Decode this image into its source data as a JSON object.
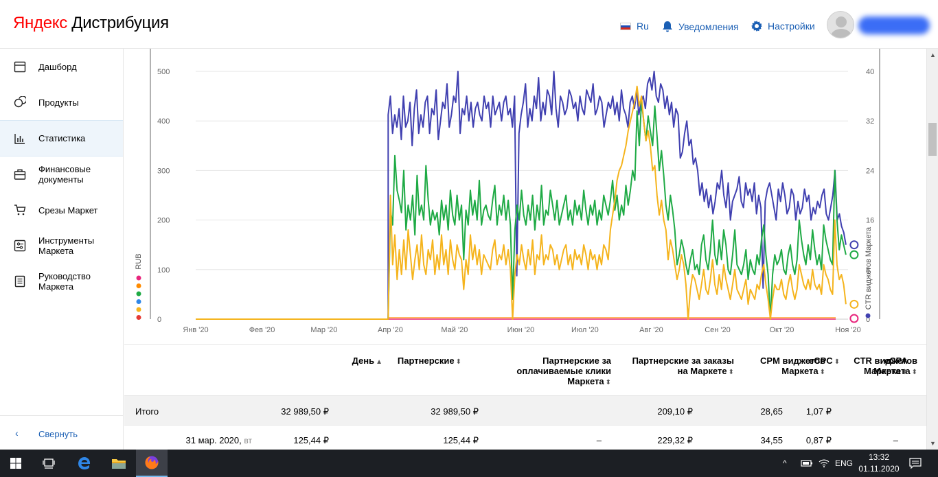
{
  "header": {
    "logo_brand": "Яндекс",
    "logo_product": "Дистрибуция",
    "lang_label": "Ru",
    "notifications_label": "Уведомления",
    "settings_label": "Настройки"
  },
  "sidebar": {
    "items": [
      {
        "label": "Дашборд",
        "icon": "calendar-icon"
      },
      {
        "label": "Продукты",
        "icon": "products-icon"
      },
      {
        "label": "Статистика",
        "icon": "bar-chart-icon",
        "active": true
      },
      {
        "label": "Финансовые\nдокументы",
        "icon": "briefcase-icon"
      },
      {
        "label": "Срезы Маркет",
        "icon": "cart-icon"
      },
      {
        "label": "Инструменты\nМаркета",
        "icon": "tools-icon"
      },
      {
        "label": "Руководство\nМаркета",
        "icon": "book-icon"
      }
    ],
    "collapse_label": "Свернуть"
  },
  "chart_data": {
    "type": "line",
    "x_ticks": [
      "Янв '20",
      "Фев '20",
      "Мар '20",
      "Апр '20",
      "Май '20",
      "Июн '20",
      "Июл '20",
      "Авг '20",
      "Сен '20",
      "Окт '20",
      "Ноя '20"
    ],
    "y_left_label": "RUB",
    "y_left_ticks": [
      0,
      100,
      200,
      300,
      400,
      500
    ],
    "y_right_label": "CTR виджетов Маркета",
    "y_right_ticks": [
      0,
      8,
      16,
      24,
      32,
      40
    ],
    "colors": {
      "blue": "#4040b0",
      "green": "#1faa45",
      "yellow": "#f5b41d",
      "pink": "#e8267d",
      "orange": "#ff8a00",
      "red": "#e53935",
      "sky": "#2f87e8"
    },
    "series": [
      {
        "color": "blue",
        "axis": "right",
        "start": "2020-03-31",
        "end": "2020-10-31",
        "values": [
          33,
          36,
          30,
          33,
          31,
          34,
          29,
          36,
          31,
          32,
          35,
          28,
          34,
          37,
          30,
          33,
          31,
          35,
          36,
          30,
          34,
          33,
          37,
          29,
          32,
          35,
          34,
          38,
          31,
          33,
          36,
          35,
          40,
          30,
          34,
          33,
          36,
          32,
          35,
          31,
          34,
          35,
          33,
          32,
          36,
          34,
          35,
          31,
          36,
          33,
          34,
          35,
          32,
          35,
          36,
          33,
          34,
          31,
          36,
          7,
          30,
          33,
          35,
          38,
          31,
          34,
          32,
          36,
          34,
          39,
          32,
          35,
          33,
          37,
          36,
          33,
          40,
          34,
          31,
          36,
          35,
          33,
          34,
          37,
          36,
          34,
          35,
          32,
          36,
          34,
          33,
          37,
          36,
          35,
          38,
          33,
          34,
          36,
          35,
          31,
          33,
          35,
          34,
          36,
          33,
          35,
          32,
          37,
          34,
          33,
          31,
          35,
          36,
          34,
          37,
          33,
          35,
          36,
          34,
          38,
          39,
          37,
          40,
          36,
          35,
          38,
          37,
          34,
          36,
          33,
          35,
          31,
          34,
          33,
          26,
          27,
          30,
          32,
          28,
          29,
          25,
          26,
          24,
          20,
          22,
          19,
          21,
          18,
          20,
          17,
          19,
          22,
          21,
          24,
          20,
          18,
          22,
          16,
          19,
          20,
          21,
          23,
          19,
          18,
          22,
          20,
          21,
          19,
          22,
          17,
          20,
          18,
          5,
          19,
          21,
          22,
          20,
          18,
          16,
          21,
          19,
          22,
          20,
          17,
          18,
          21,
          20,
          16,
          19,
          17,
          18,
          21,
          19,
          20,
          16,
          18,
          17,
          19,
          18,
          20,
          21,
          17,
          16,
          18,
          20,
          24,
          16,
          17,
          15,
          14,
          12
        ]
      },
      {
        "color": "green",
        "axis": "left",
        "start": "2020-03-31",
        "end": "2020-10-31",
        "values": [
          0,
          220,
          190,
          330,
          260,
          240,
          215,
          300,
          180,
          230,
          200,
          250,
          170,
          290,
          210,
          230,
          200,
          310,
          240,
          190,
          220,
          200,
          215,
          170,
          240,
          200,
          230,
          180,
          260,
          210,
          190,
          250,
          200,
          230,
          120,
          220,
          190,
          260,
          210,
          240,
          200,
          280,
          190,
          220,
          230,
          210,
          200,
          240,
          270,
          190,
          230,
          210,
          250,
          200,
          240,
          190,
          40,
          180,
          230,
          200,
          260,
          210,
          190,
          230,
          200,
          250,
          180,
          230,
          200,
          270,
          190,
          220,
          210,
          260,
          230,
          200,
          240,
          190,
          210,
          230,
          250,
          200,
          220,
          190,
          240,
          210,
          230,
          200,
          260,
          220,
          190,
          230,
          210,
          240,
          190,
          220,
          200,
          250,
          230,
          210,
          240,
          280,
          220,
          250,
          200,
          230,
          210,
          270,
          230,
          260,
          300,
          280,
          420,
          350,
          440,
          400,
          360,
          410,
          380,
          350,
          430,
          370,
          300,
          340,
          290,
          230,
          200,
          250,
          220,
          180,
          110,
          130,
          160,
          140,
          110,
          90,
          120,
          140,
          100,
          110,
          90,
          150,
          170,
          120,
          100,
          140,
          200,
          130,
          110,
          160,
          120,
          180,
          150,
          100,
          90,
          130,
          180,
          110,
          100,
          90,
          110,
          140,
          80,
          120,
          100,
          90,
          130,
          110,
          160,
          190,
          130,
          90,
          0,
          90,
          130,
          110,
          120,
          140,
          100,
          90,
          130,
          150,
          110,
          90,
          120,
          200,
          160,
          130,
          110,
          150,
          120,
          180,
          140,
          110,
          130,
          100,
          190,
          160,
          140,
          120,
          110,
          300,
          200,
          140,
          170,
          150,
          130
        ]
      },
      {
        "color": "yellow",
        "axis": "left",
        "start": "2020-03-31",
        "end": "2020-10-31",
        "values": [
          0,
          250,
          110,
          170,
          80,
          140,
          90,
          160,
          100,
          180,
          130,
          80,
          120,
          150,
          100,
          170,
          110,
          90,
          140,
          120,
          160,
          90,
          130,
          100,
          170,
          110,
          140,
          90,
          160,
          120,
          100,
          150,
          130,
          120,
          60,
          120,
          90,
          170,
          120,
          150,
          110,
          140,
          90,
          130,
          120,
          110,
          100,
          140,
          160,
          110,
          130,
          120,
          150,
          110,
          140,
          100,
          0,
          90,
          130,
          110,
          150,
          120,
          100,
          140,
          110,
          160,
          90,
          130,
          120,
          170,
          110,
          130,
          120,
          150,
          140,
          110,
          130,
          100,
          120,
          140,
          150,
          110,
          130,
          100,
          140,
          120,
          130,
          110,
          150,
          130,
          100,
          140,
          120,
          130,
          100,
          130,
          110,
          150,
          140,
          120,
          180,
          210,
          240,
          280,
          300,
          310,
          330,
          350,
          380,
          400,
          420,
          440,
          470,
          430,
          450,
          400,
          360,
          380,
          350,
          300,
          310,
          250,
          210,
          240,
          200,
          180,
          120,
          160,
          140,
          110,
          80,
          100,
          130,
          110,
          70,
          0,
          60,
          90,
          80,
          60,
          40,
          70,
          100,
          60,
          50,
          80,
          120,
          70,
          50,
          90,
          60,
          110,
          80,
          60,
          40,
          70,
          100,
          60,
          50,
          40,
          60,
          80,
          30,
          60,
          50,
          40,
          70,
          60,
          90,
          110,
          70,
          40,
          0,
          40,
          70,
          60,
          60,
          80,
          50,
          40,
          70,
          90,
          60,
          40,
          60,
          110,
          90,
          70,
          60,
          80,
          60,
          100,
          70,
          60,
          70,
          50,
          110,
          90,
          80,
          60,
          50,
          200,
          110,
          80,
          90,
          70,
          30
        ]
      }
    ]
  },
  "table": {
    "headers": {
      "day": "День",
      "partner": "Партнерские",
      "partner_clicks": "Партнерские за\nоплачиваемые клики\nМаркета",
      "partner_orders": "Партнерские за заказы\nна Маркете",
      "cpm": "CPM виджетов\nМаркета",
      "ctr": "CTR виджетов\nМаркета",
      "ecpc": "eCPC",
      "ecpa": "eCPA\nМаркета"
    },
    "total": {
      "label": "Итого",
      "partner": "32 989,50 ₽",
      "partner_clicks": "32 989,50 ₽",
      "cpm": "209,10 ₽",
      "ctr": "28,65",
      "ecpc": "1,07 ₽"
    },
    "row1": {
      "day": "31 мар. 2020,",
      "weekday": "вт",
      "partner": "125,44 ₽",
      "partner_clicks": "125,44 ₽",
      "partner_orders": "–",
      "cpm": "229,32 ₽",
      "ctr": "34,55",
      "ecpc": "0,87 ₽",
      "ecpa": "–"
    }
  },
  "taskbar": {
    "lang": "ENG",
    "time": "13:32",
    "date": "01.11.2020"
  }
}
